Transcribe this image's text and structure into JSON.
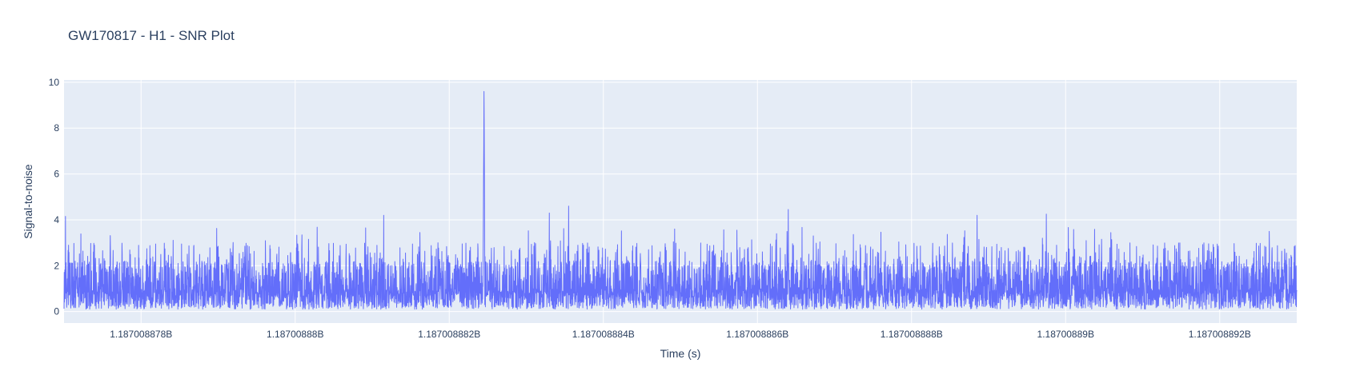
{
  "chart_data": {
    "type": "line",
    "title": "GW170817 - H1 - SNR Plot",
    "xlabel": "Time (s)",
    "ylabel": "Signal-to-noise",
    "x_tick_labels": [
      "1.187008878B",
      "1.18700888B",
      "1.187008882B",
      "1.187008884B",
      "1.187008886B",
      "1.187008888B",
      "1.18700889B",
      "1.187008892B"
    ],
    "x_tick_values": [
      1187008878,
      1187008880,
      1187008882,
      1187008884,
      1187008886,
      1187008888,
      1187008890,
      1187008892
    ],
    "xlim": [
      1187008877.0,
      1187008893.0
    ],
    "y_tick_labels": [
      "0",
      "2",
      "4",
      "6",
      "8",
      "10"
    ],
    "y_tick_values": [
      0,
      2,
      4,
      6,
      8,
      10
    ],
    "ylim": [
      -0.5,
      10.1
    ],
    "grid": true,
    "colors": {
      "line": "#636efa",
      "plot_bg": "#e5ecf6",
      "grid": "#ffffff"
    },
    "series": [
      {
        "peak": {
          "x": 1187008882.45,
          "y": 9.6
        },
        "typical_range": [
          0.1,
          3.0
        ],
        "notable_spikes": [
          {
            "x": 1187008877.02,
            "y": 4.15
          },
          {
            "x": 1187008881.15,
            "y": 4.2
          },
          {
            "x": 1187008883.3,
            "y": 4.3
          },
          {
            "x": 1187008883.55,
            "y": 4.6
          },
          {
            "x": 1187008886.4,
            "y": 4.45
          },
          {
            "x": 1187008888.85,
            "y": 4.2
          },
          {
            "x": 1187008889.75,
            "y": 4.25
          }
        ]
      }
    ]
  }
}
